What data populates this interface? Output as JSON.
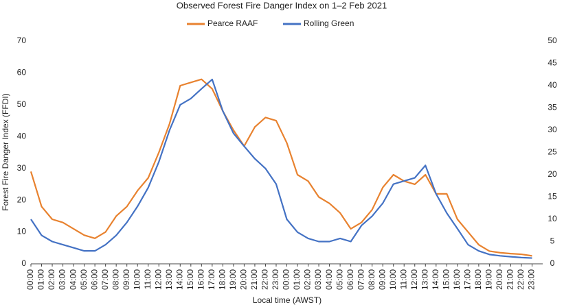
{
  "chart_data": {
    "type": "line",
    "title": "Observed Forest Fire Danger Index on 1–2 Feb 2021",
    "y_label": "Forest Fire Danger Index (FFDI)",
    "x_label": "Local time (AWST)",
    "categories": [
      "00:00",
      "01:00",
      "02:00",
      "03:00",
      "04:00",
      "05:00",
      "06:00",
      "07:00",
      "08:00",
      "09:00",
      "10:00",
      "11:00",
      "12:00",
      "13:00",
      "14:00",
      "15:00",
      "16:00",
      "17:00",
      "18:00",
      "19:00",
      "20:00",
      "21:00",
      "22:00",
      "23:00",
      "00:00",
      "01:00",
      "02:00",
      "03:00",
      "04:00",
      "05:00",
      "06:00",
      "07:00",
      "08:00",
      "09:00",
      "10:00",
      "11:00",
      "12:00",
      "13:00",
      "14:00",
      "15:00",
      "16:00",
      "17:00",
      "18:00",
      "19:00",
      "20:00",
      "21:00",
      "22:00",
      "23:00"
    ],
    "series": [
      {
        "name": "Pearce RAAF",
        "color": "#e8822f",
        "axis": "y",
        "values": [
          29,
          18,
          14,
          13,
          11,
          9,
          8,
          10,
          15,
          18,
          23,
          27,
          35,
          44,
          56,
          57,
          58,
          55,
          48,
          42,
          37,
          43,
          46,
          45,
          38,
          28,
          26,
          21,
          19,
          16,
          11,
          13,
          17,
          24,
          28,
          26,
          25,
          28,
          22,
          22,
          14,
          10,
          6,
          4,
          3.5,
          3.2,
          3,
          2.5
        ]
      },
      {
        "name": "Rolling Green",
        "color": "#4472c4",
        "axis": "y2",
        "values": [
          10,
          6.4,
          5,
          4.3,
          3.6,
          2.9,
          2.9,
          4.3,
          6.4,
          9.3,
          12.9,
          17.1,
          22.9,
          30,
          35.7,
          37.1,
          39.3,
          41.4,
          34.3,
          29.3,
          26.4,
          23.6,
          21.4,
          17.9,
          10,
          7.1,
          5.7,
          5,
          5,
          5.7,
          5,
          8.6,
          10.7,
          13.6,
          17.9,
          18.6,
          19.3,
          22.1,
          15.7,
          11.4,
          7.9,
          4.3,
          2.9,
          2.1,
          1.8,
          1.6,
          1.4,
          1.3
        ]
      }
    ],
    "ylim": [
      0,
      70
    ],
    "yticks": [
      0,
      10,
      20,
      30,
      40,
      50,
      60,
      70
    ],
    "y2lim": [
      0,
      50
    ],
    "y2ticks": [
      0,
      5,
      10,
      15,
      20,
      25,
      30,
      35,
      40,
      45,
      50
    ],
    "legend": "top"
  }
}
